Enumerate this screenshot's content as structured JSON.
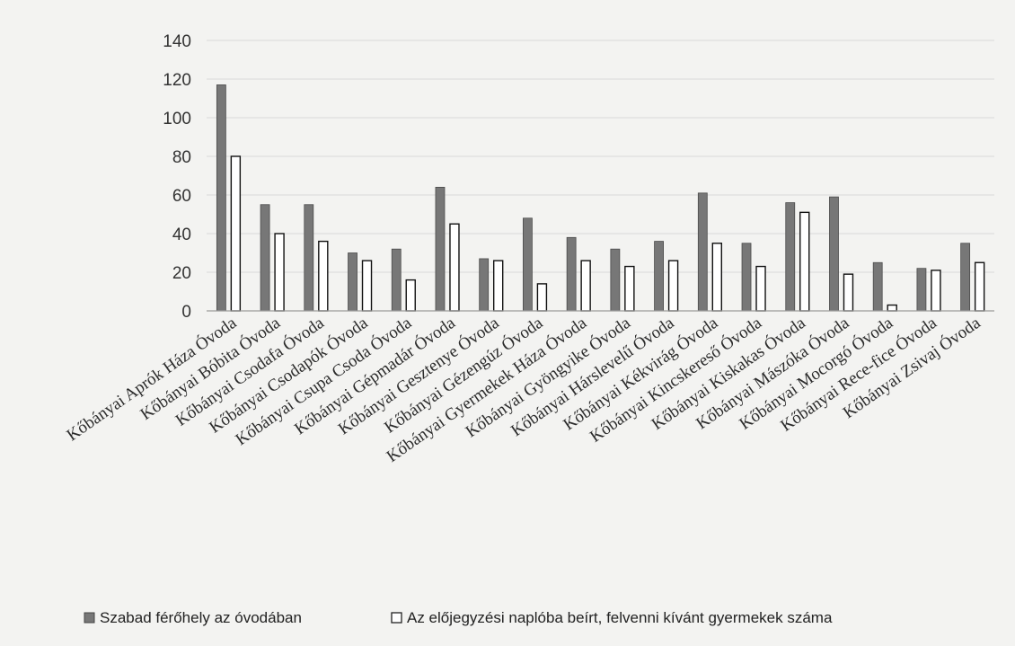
{
  "chart_data": {
    "type": "bar",
    "categories": [
      "Kőbányai Aprók Háza Óvoda",
      "Kőbányai Bóbita Óvoda",
      "Kőbányai Csodafa Óvoda",
      "Kőbányai Csodapók Óvoda",
      "Kőbányai Csupa Csoda Óvoda",
      "Kőbányai Gépmadár Óvoda",
      "Kőbányai Gesztenye Óvoda",
      "Kőbányai Gézengúz Óvoda",
      "Kőbányai Gyermekek Háza Óvoda",
      "Kőbányai Gyöngyike Óvoda",
      "Kőbányai Hárslevelű Óvoda",
      "Kőbányai Kékvirág Óvoda",
      "Kőbányai Kincskereső Óvoda",
      "Kőbányai Kiskakas Óvoda",
      "Kőbányai Mászóka Óvoda",
      "Kőbányai Mocorgó Óvoda",
      "Kőbányai Rece-fice Óvoda",
      "Kőbányai Zsivaj Óvoda"
    ],
    "series": [
      {
        "name": "Szabad férőhely az óvodában",
        "color": "#777777",
        "values": [
          117,
          55,
          55,
          30,
          32,
          64,
          27,
          48,
          38,
          32,
          36,
          61,
          35,
          56,
          59,
          25,
          22,
          35
        ]
      },
      {
        "name": "Az előjegyzési naplóba beírt, felvenni kívánt gyermekek száma",
        "color": "#ffffff",
        "values": [
          80,
          40,
          36,
          26,
          16,
          45,
          26,
          14,
          26,
          23,
          26,
          35,
          23,
          51,
          19,
          3,
          21,
          25
        ]
      }
    ],
    "yticks": [
      "0",
      "20",
      "40",
      "60",
      "80",
      "100",
      "120",
      "140"
    ],
    "ylim": [
      0,
      140
    ],
    "grid": true,
    "legend_position": "bottom"
  }
}
